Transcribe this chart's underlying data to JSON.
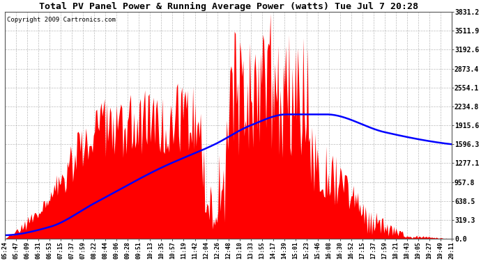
{
  "title": "Total PV Panel Power & Running Average Power (watts) Tue Jul 7 20:28",
  "copyright": "Copyright 2009 Cartronics.com",
  "background_color": "#ffffff",
  "plot_bg_color": "#ffffff",
  "grid_color": "#aaaaaa",
  "bar_color": "#ff0000",
  "line_color": "#0000ff",
  "yticks": [
    0.0,
    319.3,
    638.5,
    957.8,
    1277.1,
    1596.3,
    1915.6,
    2234.8,
    2554.1,
    2873.4,
    3192.6,
    3511.9,
    3831.2
  ],
  "ymax": 3831.2,
  "ymin": 0.0,
  "xtick_labels": [
    "05:24",
    "05:47",
    "06:09",
    "06:31",
    "06:53",
    "07:15",
    "07:37",
    "07:59",
    "08:22",
    "08:44",
    "09:06",
    "09:28",
    "09:51",
    "10:13",
    "10:35",
    "10:57",
    "11:19",
    "11:42",
    "12:04",
    "12:26",
    "12:48",
    "13:10",
    "13:33",
    "13:55",
    "14:17",
    "14:39",
    "15:01",
    "15:23",
    "15:46",
    "16:08",
    "16:30",
    "16:52",
    "17:15",
    "17:37",
    "17:59",
    "18:21",
    "18:43",
    "19:05",
    "19:27",
    "19:49",
    "20:11"
  ],
  "figwidth": 6.9,
  "figheight": 3.75,
  "dpi": 100
}
